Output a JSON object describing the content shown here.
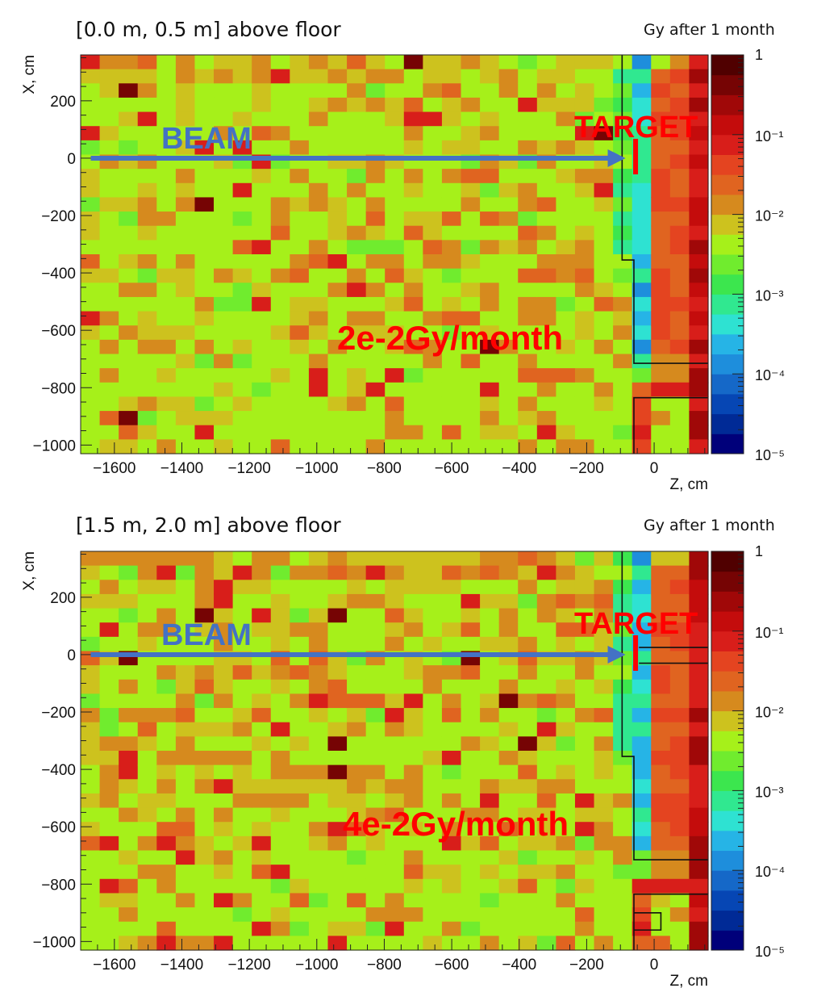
{
  "chart_data": [
    {
      "type": "heatmap",
      "title": "[0.0 m, 0.5 m] above floor",
      "colorbar_title": "Gy after 1 month",
      "xlabel": "Z, cm",
      "ylabel": "X, cm",
      "xlim": [
        -1700,
        160
      ],
      "ylim": [
        -1030,
        360
      ],
      "x_ticks": [
        "−1600",
        "−1400",
        "−1200",
        "−1000",
        "−800",
        "−600",
        "−400",
        "−200",
        "0"
      ],
      "y_ticks": [
        "200",
        "0",
        "−200",
        "−400",
        "−600",
        "−800",
        "−1000"
      ],
      "colorbar_ticks": [
        "1",
        "10⁻¹",
        "10⁻²",
        "10⁻³",
        "10⁻⁴",
        "10⁻⁵"
      ],
      "colorbar_range": [
        1e-05,
        1
      ],
      "scale": "log",
      "annotations": {
        "beam": "BEAM",
        "target": "TARGET",
        "dose": "2e-2Gy/month"
      },
      "bins": {
        "nz": 33,
        "nx": 28
      },
      "dose_level_gy_per_month": 0.02
    },
    {
      "type": "heatmap",
      "title": "[1.5 m, 2.0 m] above floor",
      "colorbar_title": "Gy after 1 month",
      "xlabel": "Z, cm",
      "ylabel": "X, cm",
      "xlim": [
        -1700,
        160
      ],
      "ylim": [
        -1030,
        360
      ],
      "x_ticks": [
        "−1600",
        "−1400",
        "−1200",
        "−1000",
        "−800",
        "−600",
        "−400",
        "−200",
        "0"
      ],
      "y_ticks": [
        "200",
        "0",
        "−200",
        "−400",
        "−600",
        "−800",
        "−1000"
      ],
      "colorbar_ticks": [
        "1",
        "10⁻¹",
        "10⁻²",
        "10⁻³",
        "10⁻⁴",
        "10⁻⁵"
      ],
      "colorbar_range": [
        1e-05,
        1
      ],
      "scale": "log",
      "annotations": {
        "beam": "BEAM",
        "target": "TARGET",
        "dose": "4e-2Gy/month"
      },
      "bins": {
        "nz": 33,
        "nx": 28
      },
      "dose_level_gy_per_month": 0.04
    }
  ],
  "colors": {
    "beam_arrow": "#4472c4",
    "target_marker": "#ff0000",
    "dose_label": "#ff0000",
    "palette": [
      "#00007a",
      "#002a96",
      "#0646b4",
      "#1568c8",
      "#1e8edc",
      "#26b4e6",
      "#2ee2d2",
      "#30e890",
      "#3ce64e",
      "#70ec2e",
      "#a6f01a",
      "#cdc21e",
      "#d68a1e",
      "#e06420",
      "#e44420",
      "#d81e1a",
      "#c40c0c",
      "#a00808",
      "#760404",
      "#500000"
    ]
  }
}
